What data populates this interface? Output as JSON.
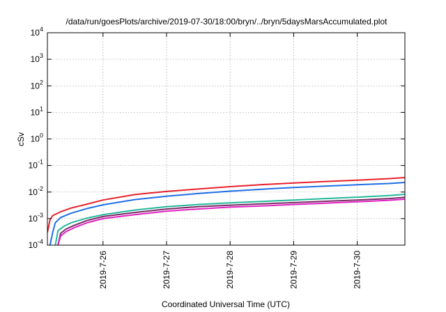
{
  "chart_data": {
    "type": "line",
    "title": "/data/run/goesPlots/archive/2019-07-30/18:00/bryn/../bryn/5daysMarsAccumulated.plot",
    "xlabel": "Coordinated Universal Time (UTC)",
    "ylabel": "cSv",
    "y_scale": "log",
    "ylim": [
      0.0001,
      10000
    ],
    "y_ticks": [
      {
        "value": 0.0001,
        "base": "10",
        "exp": "-4"
      },
      {
        "value": 0.001,
        "base": "10",
        "exp": "-3"
      },
      {
        "value": 0.01,
        "base": "10",
        "exp": "-2"
      },
      {
        "value": 0.1,
        "base": "10",
        "exp": "-1"
      },
      {
        "value": 1,
        "base": "10",
        "exp": "0"
      },
      {
        "value": 10,
        "base": "10",
        "exp": "1"
      },
      {
        "value": 100,
        "base": "10",
        "exp": "2"
      },
      {
        "value": 1000,
        "base": "10",
        "exp": "3"
      },
      {
        "value": 10000,
        "base": "10",
        "exp": "4"
      }
    ],
    "xlim": [
      "2019-07-25 03:00",
      "2019-07-30 18:00"
    ],
    "x_ticks": [
      "2019-7-26",
      "2019-7-27",
      "2019-7-28",
      "2019-7-29",
      "2019-7-30"
    ],
    "grid": true,
    "legend": "none",
    "series": [
      {
        "color": "#e8202a",
        "x": [
          "2019-07-25 03:00",
          "2019-07-25 04:00",
          "2019-07-25 05:00",
          "2019-07-25 08:00",
          "2019-07-25 12:00",
          "2019-07-25 18:00",
          "2019-07-26 00:00",
          "2019-07-26 12:00",
          "2019-07-27 00:00",
          "2019-07-27 12:00",
          "2019-07-28 00:00",
          "2019-07-28 12:00",
          "2019-07-29 00:00",
          "2019-07-29 12:00",
          "2019-07-30 00:00",
          "2019-07-30 12:00",
          "2019-07-30 18:00"
        ],
        "y": [
          0.0003,
          0.0009,
          0.0013,
          0.0018,
          0.0025,
          0.0035,
          0.005,
          0.008,
          0.0105,
          0.013,
          0.016,
          0.019,
          0.022,
          0.025,
          0.028,
          0.032,
          0.035
        ]
      },
      {
        "color": "#1f6ee6",
        "x": [
          "2019-07-25 04:00",
          "2019-07-25 05:00",
          "2019-07-25 06:00",
          "2019-07-25 08:00",
          "2019-07-25 12:00",
          "2019-07-25 18:00",
          "2019-07-26 00:00",
          "2019-07-26 12:00",
          "2019-07-27 00:00",
          "2019-07-27 12:00",
          "2019-07-28 00:00",
          "2019-07-28 12:00",
          "2019-07-29 00:00",
          "2019-07-29 12:00",
          "2019-07-30 00:00",
          "2019-07-30 12:00",
          "2019-07-30 18:00"
        ],
        "y": [
          0.0001,
          0.0003,
          0.0007,
          0.0011,
          0.0016,
          0.0024,
          0.0033,
          0.0052,
          0.007,
          0.0088,
          0.0108,
          0.0128,
          0.0148,
          0.0168,
          0.0188,
          0.021,
          0.023
        ]
      },
      {
        "color": "#22b89a",
        "x": [
          "2019-07-25 06:00",
          "2019-07-25 07:00",
          "2019-07-25 09:00",
          "2019-07-25 12:00",
          "2019-07-25 18:00",
          "2019-07-26 00:00",
          "2019-07-26 12:00",
          "2019-07-27 00:00",
          "2019-07-27 12:00",
          "2019-07-28 00:00",
          "2019-07-28 12:00",
          "2019-07-29 00:00",
          "2019-07-29 12:00",
          "2019-07-30 00:00",
          "2019-07-30 12:00",
          "2019-07-30 18:00"
        ],
        "y": [
          0.0001,
          0.00035,
          0.0005,
          0.0007,
          0.00105,
          0.0014,
          0.0021,
          0.0028,
          0.0034,
          0.0039,
          0.0044,
          0.005,
          0.0057,
          0.0064,
          0.0074,
          0.0082
        ]
      },
      {
        "color": "#7a2a64",
        "x": [
          "2019-07-25 07:00",
          "2019-07-25 08:00",
          "2019-07-25 10:00",
          "2019-07-25 13:00",
          "2019-07-25 18:00",
          "2019-07-26 00:00",
          "2019-07-26 12:00",
          "2019-07-27 00:00",
          "2019-07-27 12:00",
          "2019-07-28 00:00",
          "2019-07-28 12:00",
          "2019-07-29 00:00",
          "2019-07-29 12:00",
          "2019-07-30 00:00",
          "2019-07-30 12:00",
          "2019-07-30 18:00"
        ],
        "y": [
          0.0001,
          0.00028,
          0.0004,
          0.00055,
          0.00085,
          0.0012,
          0.0017,
          0.0023,
          0.0028,
          0.0032,
          0.0036,
          0.004,
          0.0045,
          0.005,
          0.0057,
          0.0063
        ]
      },
      {
        "color": "#e020c0",
        "x": [
          "2019-07-25 07:00",
          "2019-07-25 08:00",
          "2019-07-25 10:00",
          "2019-07-25 13:00",
          "2019-07-25 18:00",
          "2019-07-26 00:00",
          "2019-07-26 12:00",
          "2019-07-27 00:00",
          "2019-07-27 12:00",
          "2019-07-28 00:00",
          "2019-07-28 12:00",
          "2019-07-29 00:00",
          "2019-07-29 12:00",
          "2019-07-30 00:00",
          "2019-07-30 12:00",
          "2019-07-30 18:00"
        ],
        "y": [
          0.0001,
          0.00022,
          0.00032,
          0.00045,
          0.0007,
          0.001,
          0.0014,
          0.0019,
          0.0023,
          0.0027,
          0.003,
          0.0034,
          0.0038,
          0.0043,
          0.0049,
          0.0054
        ]
      }
    ]
  }
}
